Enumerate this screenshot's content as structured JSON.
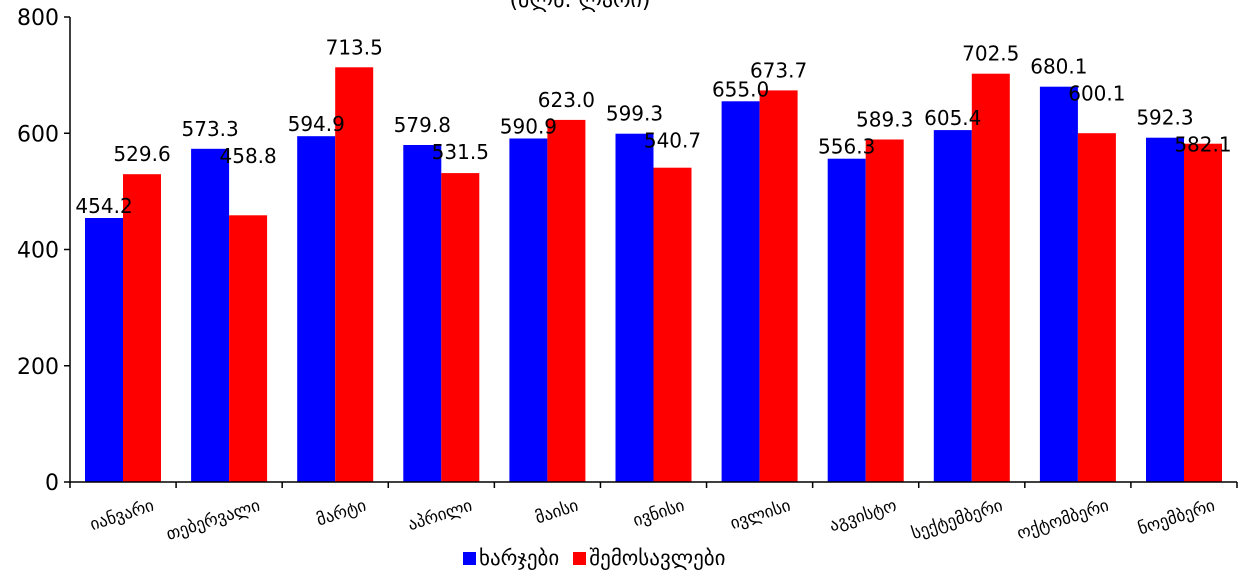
{
  "chart_data": {
    "type": "bar",
    "subtitle": "(მლნ. ლარი)",
    "categories": [
      "იანვარი",
      "თებერვალი",
      "მარტი",
      "აპრილი",
      "მაისი",
      "ივნისი",
      "ივლისი",
      "აგვისტო",
      "სექტემბერი",
      "ოქტომბერი",
      "ნოემბერი"
    ],
    "series": [
      {
        "name": "ხარჯები",
        "color": "#0000ff",
        "values": [
          454.2,
          573.3,
          594.9,
          579.8,
          590.9,
          599.3,
          655.0,
          556.3,
          605.4,
          680.1,
          592.3
        ],
        "labels": [
          "454.2",
          "573.3",
          "594.9",
          "579.8",
          "590.9",
          "599.3",
          "655.0",
          "556.3",
          "605.4",
          "680.1",
          "592.3"
        ]
      },
      {
        "name": "შემოსავლები",
        "color": "#ff0000",
        "values": [
          529.6,
          458.8,
          713.5,
          531.5,
          623.0,
          540.7,
          673.7,
          589.3,
          702.5,
          600.1,
          582.1
        ],
        "labels": [
          "529.6",
          "458.8",
          "713.5",
          "531.5",
          "623.0",
          "540.7",
          "673.7",
          "589.3",
          "702.5",
          "600.1",
          "582.1"
        ]
      }
    ],
    "ylim": [
      0,
      800
    ],
    "yticks": [
      "0",
      "200",
      "400",
      "600",
      "800"
    ],
    "grid": false,
    "legend_position": "bottom"
  }
}
